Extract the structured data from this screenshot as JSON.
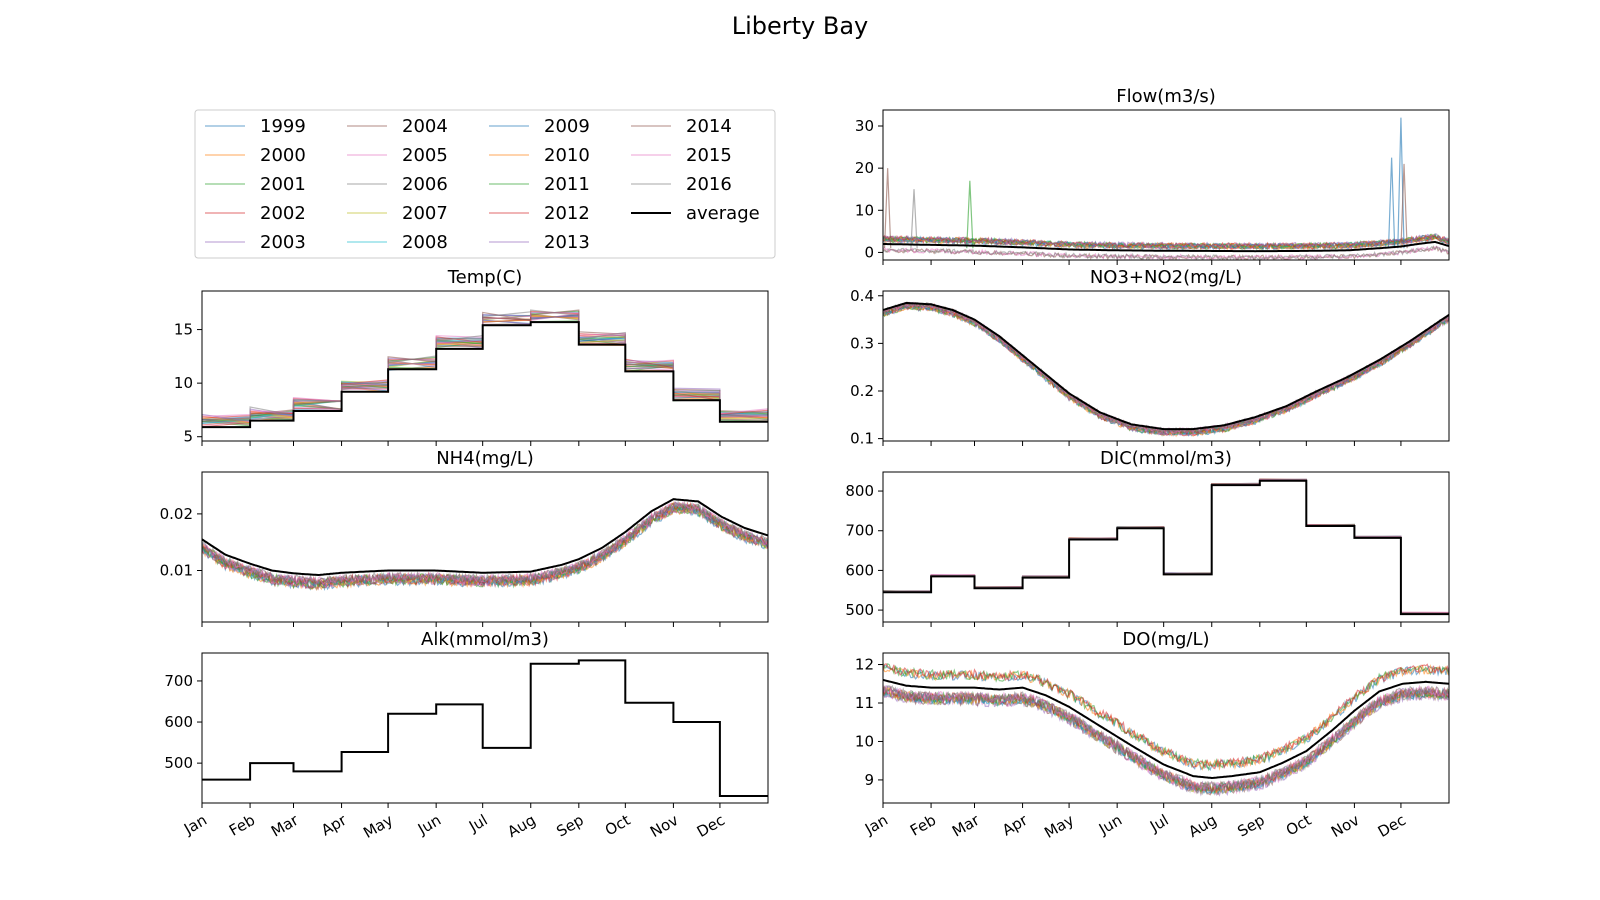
{
  "figure": {
    "title": "Liberty Bay"
  },
  "legend": {
    "location": "upper-left panel",
    "entries": [
      "1999",
      "2000",
      "2001",
      "2002",
      "2003",
      "2004",
      "2005",
      "2006",
      "2007",
      "2008",
      "2009",
      "2010",
      "2011",
      "2012",
      "2013",
      "2014",
      "2015",
      "2016",
      "average"
    ]
  },
  "colors": {
    "years": [
      "#1f77b4",
      "#ff7f0e",
      "#2ca02c",
      "#d62728",
      "#9467bd",
      "#8c564b",
      "#e377c2",
      "#7f7f7f",
      "#bcbd22",
      "#17becf",
      "#1f77b4",
      "#ff7f0e",
      "#2ca02c",
      "#d62728",
      "#9467bd",
      "#8c564b",
      "#e377c2",
      "#7f7f7f"
    ],
    "average": "#000000"
  },
  "chart_data": [
    {
      "type": "line",
      "title": "Temp(C)",
      "xlabel": "",
      "ylabel": "",
      "x_domain": [
        0,
        365
      ],
      "ylim": [
        4.6,
        18.6
      ],
      "yticks": [
        5,
        10,
        15
      ],
      "x_ticks": [
        "Jan",
        "Feb",
        "Mar",
        "Apr",
        "May",
        "Jun",
        "Jul",
        "Aug",
        "Sep",
        "Oct",
        "Nov",
        "Dec"
      ],
      "series": [
        {
          "name": "average",
          "x_months": [
            0,
            1,
            2,
            3,
            4,
            5,
            6,
            7,
            8,
            9,
            10,
            11
          ],
          "values": [
            5.9,
            6.5,
            7.4,
            9.2,
            11.3,
            13.2,
            15.4,
            15.7,
            13.6,
            11.1,
            8.4,
            6.4
          ]
        }
      ],
      "yearly_spread": 1.2
    },
    {
      "type": "line",
      "title": "NH4(mg/L)",
      "xlabel": "",
      "ylabel": "",
      "x_domain": [
        0,
        365
      ],
      "ylim": [
        0.0009,
        0.0274
      ],
      "yticks": [
        0.01,
        0.02
      ],
      "ytick_labels": [
        "0.01",
        "0.02"
      ],
      "x_ticks": [
        "Jan",
        "Feb",
        "Mar",
        "Apr",
        "May",
        "Jun",
        "Jul",
        "Aug",
        "Sep",
        "Oct",
        "Nov",
        "Dec"
      ],
      "series": [
        {
          "name": "average",
          "x_days": [
            0,
            15,
            31,
            45,
            59,
            75,
            90,
            105,
            120,
            150,
            181,
            212,
            232,
            243,
            258,
            273,
            290,
            304,
            320,
            335,
            350,
            365
          ],
          "values": [
            0.0155,
            0.0128,
            0.0112,
            0.01,
            0.0095,
            0.0092,
            0.0096,
            0.0098,
            0.01,
            0.01,
            0.0096,
            0.0098,
            0.011,
            0.012,
            0.014,
            0.0168,
            0.0205,
            0.0226,
            0.0222,
            0.0195,
            0.0175,
            0.0162
          ]
        }
      ],
      "yearly_spread": 0.002
    },
    {
      "type": "line",
      "title": "Alk(mmol/m3)",
      "xlabel": "",
      "ylabel": "",
      "x_domain": [
        0,
        365
      ],
      "ylim": [
        403,
        768
      ],
      "yticks": [
        500,
        600,
        700
      ],
      "x_ticks": [
        "Jan",
        "Feb",
        "Mar",
        "Apr",
        "May",
        "Jun",
        "Jul",
        "Aug",
        "Sep",
        "Oct",
        "Nov",
        "Dec"
      ],
      "series": [
        {
          "name": "average",
          "x_months": [
            0,
            1,
            2,
            3,
            4,
            5,
            6,
            7,
            8,
            9,
            10,
            11
          ],
          "values": [
            460,
            500,
            480,
            527,
            620,
            643,
            537,
            742,
            750,
            647,
            600,
            420
          ]
        }
      ],
      "yearly_spread": 0
    },
    {
      "type": "line",
      "title": "Flow(m3/s)",
      "xlabel": "",
      "ylabel": "",
      "x_domain": [
        0,
        365
      ],
      "ylim": [
        -1.8,
        33.8
      ],
      "yticks": [
        0,
        10,
        20,
        30
      ],
      "x_ticks": [
        "Jan",
        "Feb",
        "Mar",
        "Apr",
        "May",
        "Jun",
        "Jul",
        "Aug",
        "Sep",
        "Oct",
        "Nov",
        "Dec"
      ],
      "series": [
        {
          "name": "average",
          "x_days": [
            0,
            30,
            60,
            90,
            120,
            150,
            180,
            210,
            240,
            270,
            300,
            320,
            334,
            345,
            356,
            365
          ],
          "values": [
            2.0,
            1.8,
            1.6,
            1.2,
            0.7,
            0.5,
            0.4,
            0.35,
            0.3,
            0.35,
            0.5,
            1.0,
            1.4,
            2.0,
            2.5,
            1.5
          ]
        }
      ],
      "yearly_spread": 1.5,
      "peaks": [
        {
          "x": 334,
          "y": 32
        },
        {
          "x": 336,
          "y": 21
        },
        {
          "x": 328,
          "y": 22.5
        },
        {
          "x": 3,
          "y": 20
        },
        {
          "x": 56,
          "y": 17
        },
        {
          "x": 20,
          "y": 15
        }
      ]
    },
    {
      "type": "line",
      "title": "NO3+NO2(mg/L)",
      "xlabel": "",
      "ylabel": "",
      "x_domain": [
        0,
        365
      ],
      "ylim": [
        0.095,
        0.41
      ],
      "yticks": [
        0.1,
        0.2,
        0.3,
        0.4
      ],
      "ytick_labels": [
        "0.1",
        "0.2",
        "0.3",
        "0.4"
      ],
      "x_ticks": [
        "Jan",
        "Feb",
        "Mar",
        "Apr",
        "May",
        "Jun",
        "Jul",
        "Aug",
        "Sep",
        "Oct",
        "Nov",
        "Dec"
      ],
      "series": [
        {
          "name": "average",
          "x_days": [
            0,
            15,
            31,
            45,
            59,
            75,
            90,
            105,
            120,
            140,
            160,
            181,
            200,
            220,
            240,
            260,
            280,
            300,
            320,
            340,
            365
          ],
          "values": [
            0.37,
            0.385,
            0.382,
            0.37,
            0.35,
            0.315,
            0.275,
            0.235,
            0.195,
            0.155,
            0.13,
            0.12,
            0.12,
            0.128,
            0.145,
            0.168,
            0.2,
            0.23,
            0.265,
            0.305,
            0.36
          ]
        }
      ],
      "yearly_spread": 0.015
    },
    {
      "type": "line",
      "title": "DIC(mmol/m3)",
      "xlabel": "",
      "ylabel": "",
      "x_domain": [
        0,
        365
      ],
      "ylim": [
        470,
        848
      ],
      "yticks": [
        500,
        600,
        700,
        800
      ],
      "x_ticks": [
        "Jan",
        "Feb",
        "Mar",
        "Apr",
        "May",
        "Jun",
        "Jul",
        "Aug",
        "Sep",
        "Oct",
        "Nov",
        "Dec"
      ],
      "series": [
        {
          "name": "average",
          "x_months": [
            0,
            1,
            2,
            3,
            4,
            5,
            6,
            7,
            8,
            9,
            10,
            11
          ],
          "values": [
            545,
            585,
            555,
            582,
            678,
            706,
            590,
            815,
            826,
            712,
            682,
            490
          ]
        }
      ],
      "yearly_spread": 5
    },
    {
      "type": "line",
      "title": "DO(mg/L)",
      "xlabel": "",
      "ylabel": "",
      "x_domain": [
        0,
        365
      ],
      "ylim": [
        8.4,
        12.3
      ],
      "yticks": [
        9,
        10,
        11,
        12
      ],
      "x_ticks": [
        "Jan",
        "Feb",
        "Mar",
        "Apr",
        "May",
        "Jun",
        "Jul",
        "Aug",
        "Sep",
        "Oct",
        "Nov",
        "Dec"
      ],
      "series": [
        {
          "name": "average",
          "x_days": [
            0,
            15,
            31,
            45,
            59,
            75,
            90,
            105,
            120,
            140,
            160,
            181,
            200,
            212,
            225,
            243,
            258,
            273,
            290,
            304,
            320,
            335,
            350,
            365
          ],
          "values": [
            11.6,
            11.45,
            11.4,
            11.4,
            11.4,
            11.35,
            11.4,
            11.2,
            10.9,
            10.4,
            9.9,
            9.4,
            9.1,
            9.05,
            9.1,
            9.2,
            9.45,
            9.75,
            10.3,
            10.8,
            11.3,
            11.5,
            11.55,
            11.5
          ]
        }
      ],
      "yearly_spread": 0.35
    }
  ]
}
